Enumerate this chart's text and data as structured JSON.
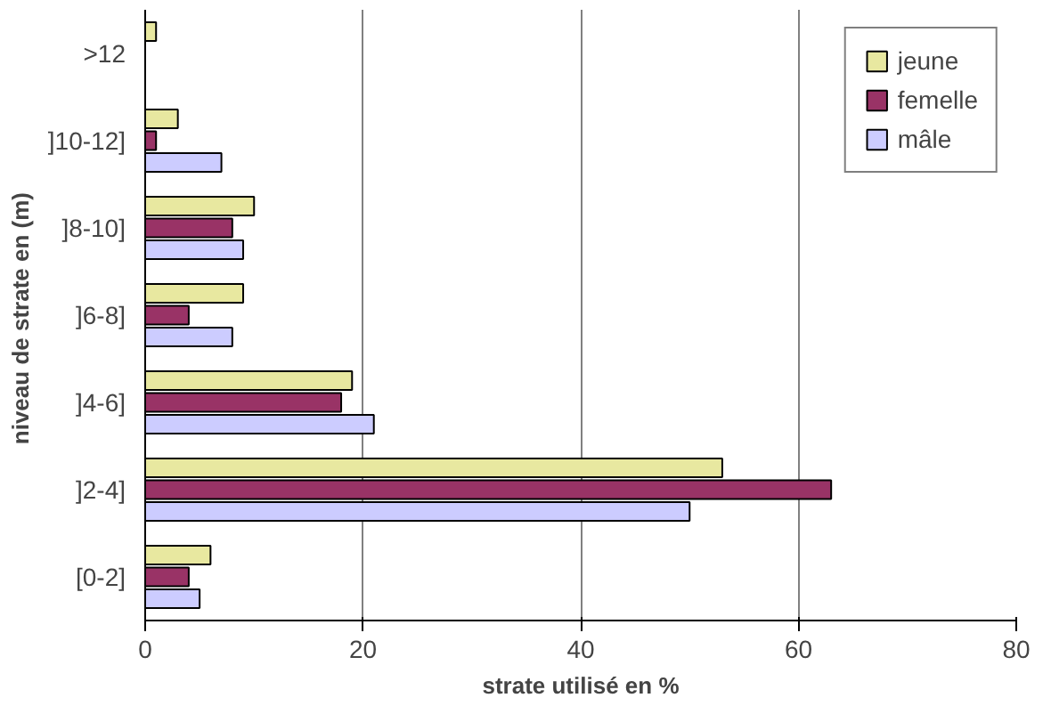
{
  "chart_data": {
    "type": "bar",
    "orientation": "horizontal",
    "xlabel": "strate utilisé en %",
    "ylabel": "niveau de strate en  (m)",
    "categories": [
      ">12",
      "]10-12]",
      "]8-10]",
      "]6-8]",
      "]4-6]",
      "]2-4]",
      "[0-2]"
    ],
    "series": [
      {
        "name": "jeune",
        "color": "#e8e8a0",
        "values": [
          1,
          3,
          10,
          9,
          19,
          53,
          6
        ]
      },
      {
        "name": "femelle",
        "color": "#993366",
        "values": [
          null,
          1,
          8,
          4,
          18,
          63,
          4
        ]
      },
      {
        "name": "mâle",
        "color": "#ccccff",
        "values": [
          null,
          7,
          9,
          8,
          21,
          50,
          5
        ]
      }
    ],
    "xlim": [
      0,
      80
    ],
    "xticks": [
      0,
      20,
      40,
      60,
      80
    ],
    "grid": "x",
    "legend": "top right"
  }
}
